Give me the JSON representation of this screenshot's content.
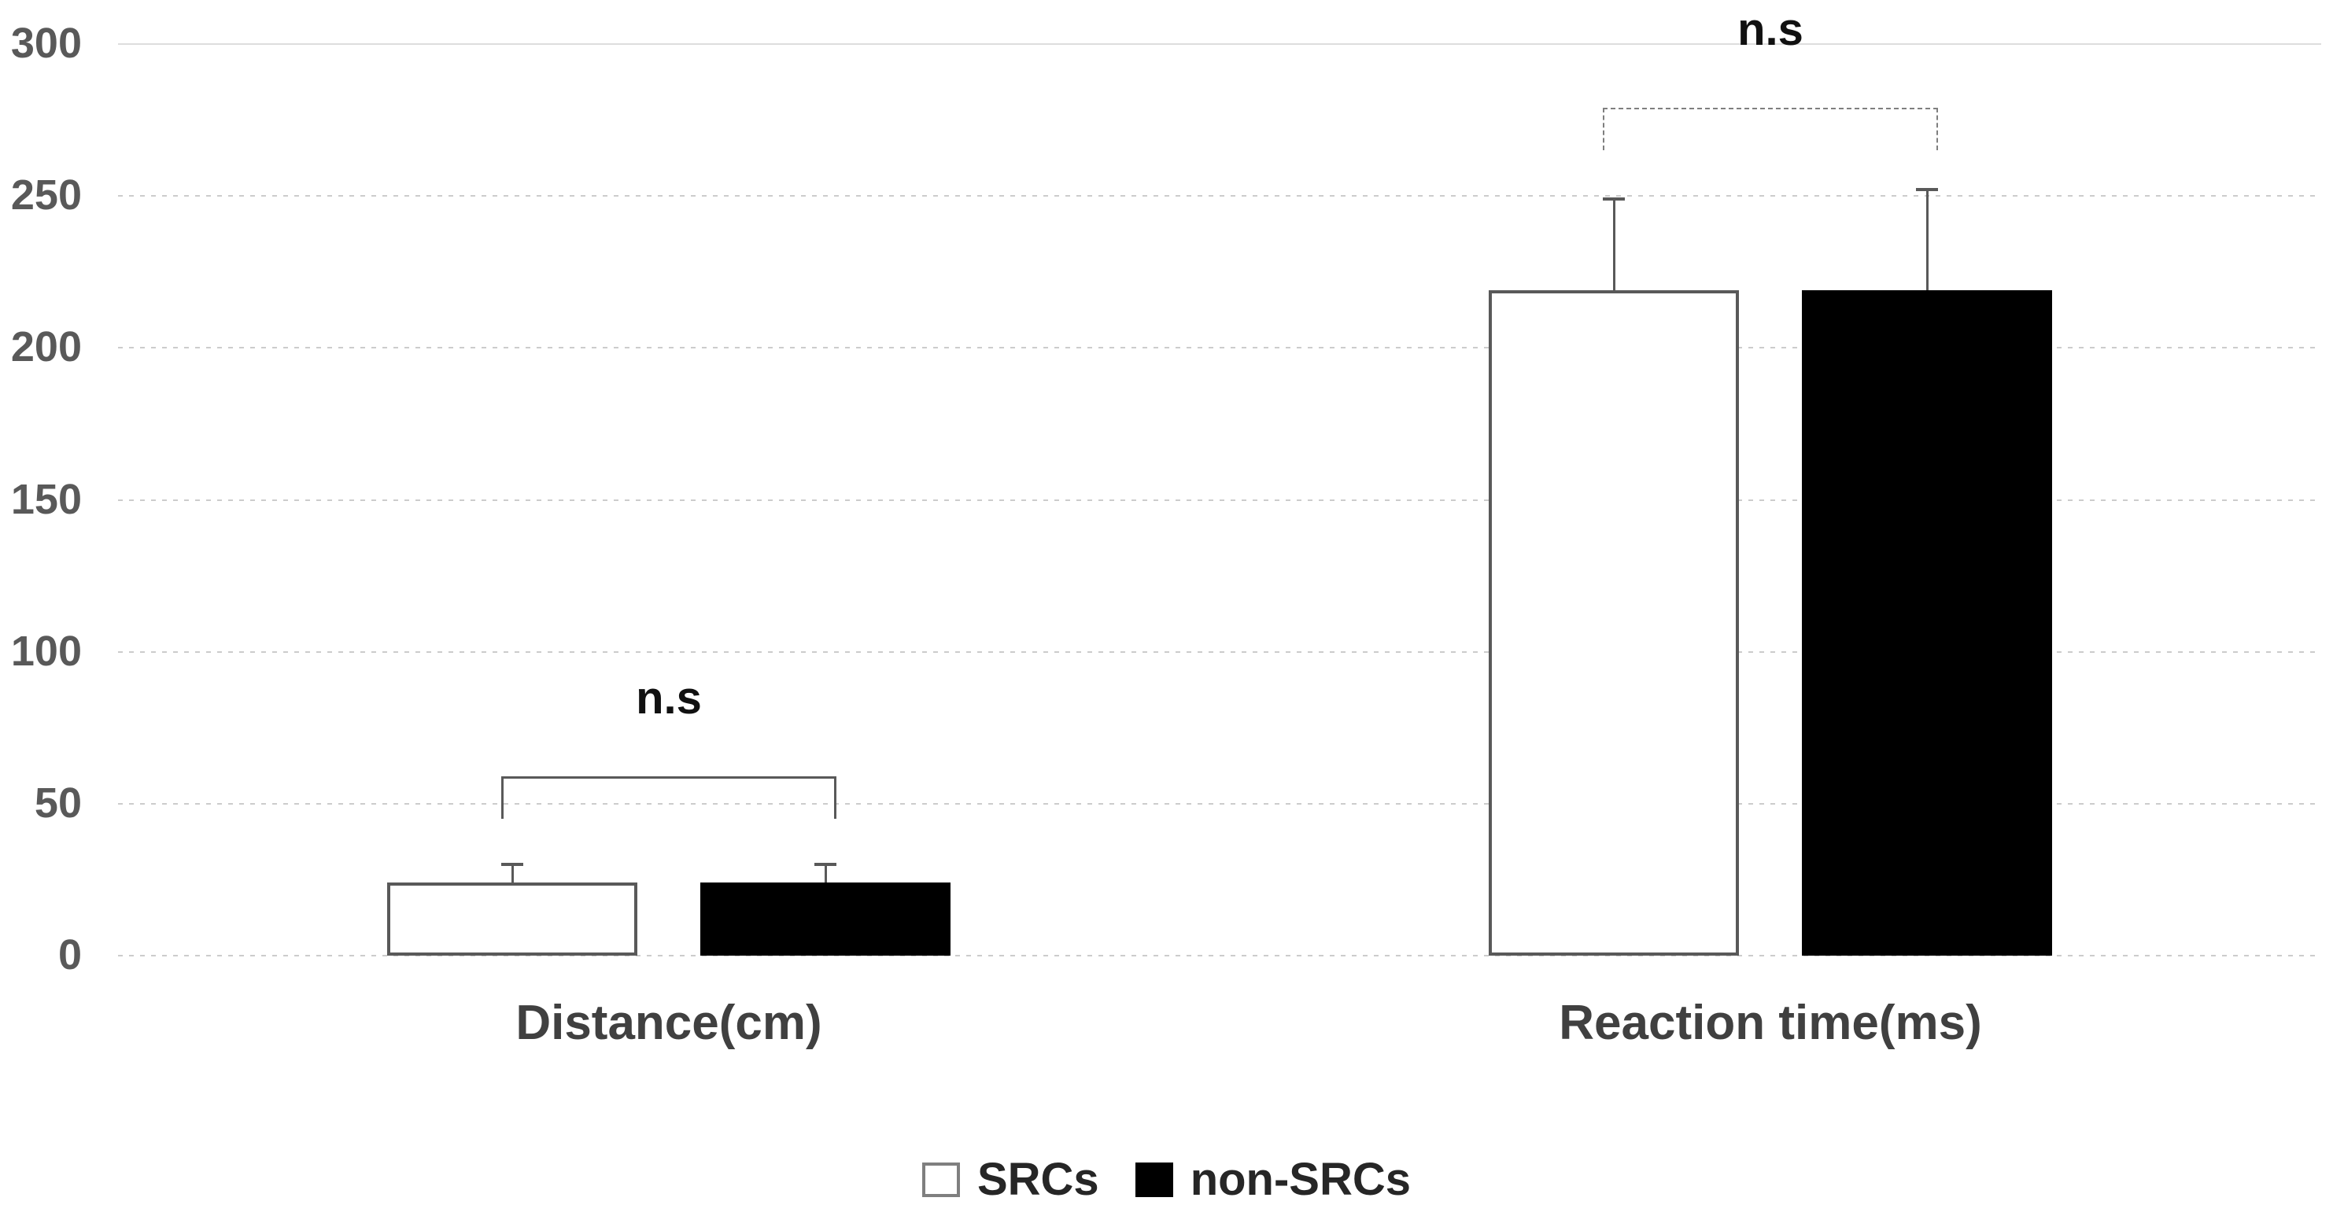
{
  "chart_data": {
    "type": "bar",
    "title": "",
    "xlabel": "",
    "ylabel": "",
    "categories": [
      "Distance(cm)",
      "Reaction time(ms)"
    ],
    "series": [
      {
        "name": "SRCs",
        "fill": "#ffffff",
        "border": "#595959",
        "values": [
          24,
          219
        ],
        "error_tops": [
          30,
          249
        ]
      },
      {
        "name": "non-SRCs",
        "fill": "#000000",
        "border": "#000000",
        "values": [
          24,
          219
        ],
        "error_tops": [
          30,
          252
        ]
      }
    ],
    "ylim": [
      0,
      300
    ],
    "ytick_step": 50,
    "yticks": [
      "0",
      "50",
      "100",
      "150",
      "200",
      "250",
      "300"
    ],
    "grid": "horizontal dotted gridlines, topmost (300) line solid",
    "legend_position": "bottom-center",
    "annotations": [
      {
        "label": "n.s",
        "category": "Distance(cm)",
        "bracket_top": 59,
        "bracket_leg_bottom": 45,
        "line_style": "solid"
      },
      {
        "label": "n.s",
        "category": "Reaction time(ms)",
        "bracket_top": 279,
        "bracket_leg_bottom": 265,
        "line_style": "dashed"
      }
    ]
  },
  "legend": {
    "items": [
      {
        "label": "SRCs",
        "swatch": "white-outline"
      },
      {
        "label": "non-SRCs",
        "swatch": "black-fill"
      }
    ]
  },
  "colors": {
    "background": "#ffffff",
    "grid_dotted": "#cccccc",
    "grid_solid": "#dddddd",
    "axis_tick_text": "#595959",
    "category_text": "#404040",
    "annotation_text": "#111111",
    "error_bar": "#595959",
    "bar_white_fill": "#ffffff",
    "bar_white_border": "#595959",
    "bar_black_fill": "#000000"
  }
}
